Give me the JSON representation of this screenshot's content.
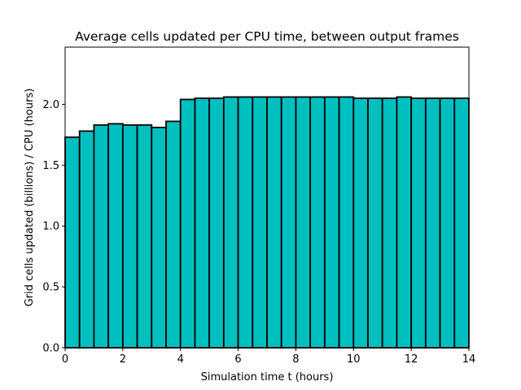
{
  "chart_data": {
    "type": "bar",
    "title": "Average cells updated per CPU time, between output frames",
    "xlabel": "Simulation time t (hours)",
    "ylabel": "Grid cells updated (billions) / CPU (hours)",
    "xlim": [
      0,
      14
    ],
    "ylim": [
      0,
      2.47
    ],
    "xticks": [
      "0",
      "2",
      "4",
      "6",
      "8",
      "10",
      "12",
      "14"
    ],
    "yticks": [
      "0.0",
      "0.5",
      "1.0",
      "1.5",
      "2.0"
    ],
    "bin_width": 0.5,
    "bins_start": [
      0,
      0.5,
      1,
      1.5,
      2,
      2.5,
      3,
      3.5,
      4,
      4.5,
      5,
      5.5,
      6,
      6.5,
      7,
      7.5,
      8,
      8.5,
      9,
      9.5,
      10,
      10.5,
      11,
      11.5,
      12,
      12.5,
      13,
      13.5
    ],
    "values": [
      1.73,
      1.78,
      1.83,
      1.84,
      1.83,
      1.83,
      1.81,
      1.86,
      2.04,
      2.05,
      2.05,
      2.06,
      2.06,
      2.06,
      2.06,
      2.06,
      2.06,
      2.06,
      2.06,
      2.06,
      2.05,
      2.05,
      2.05,
      2.06,
      2.05,
      2.05,
      2.05,
      2.05
    ],
    "bar_color": "#00bfbf",
    "edge_color": "#000000",
    "grid": false,
    "legend": "none"
  }
}
